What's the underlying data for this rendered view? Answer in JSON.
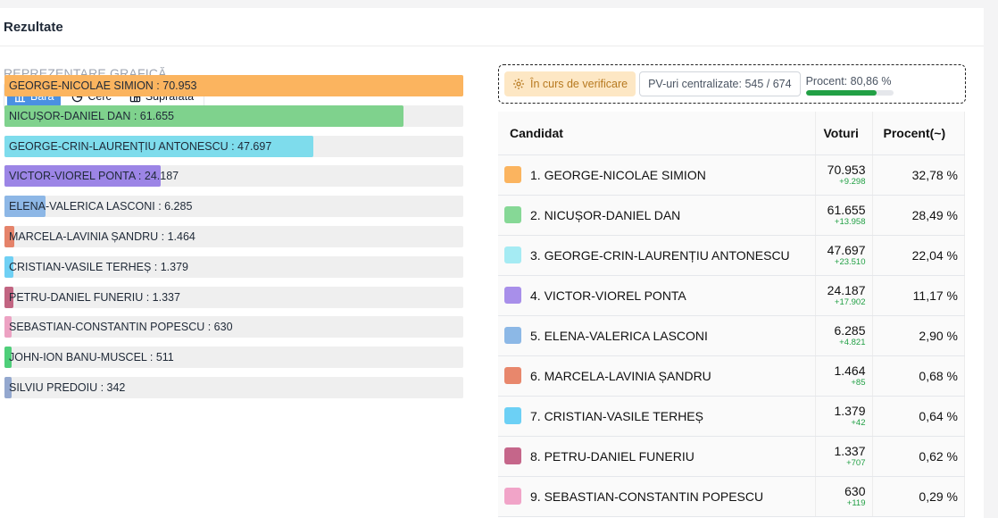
{
  "header": {
    "title": "Rezultate"
  },
  "chart_section": {
    "label": "REPREZENTARE GRAFICĂ",
    "toggles": [
      {
        "label": "Bara",
        "icon": "bar-chart-icon",
        "active": true
      },
      {
        "label": "Cerc",
        "icon": "pie-chart-icon",
        "active": false
      },
      {
        "label": "Suprafata",
        "icon": "treemap-icon",
        "active": false
      }
    ]
  },
  "chart_data": {
    "type": "bar",
    "orientation": "horizontal",
    "xlim": [
      0,
      70953
    ],
    "grid": false,
    "categories": [
      "GEORGE-NICOLAE SIMION",
      "NICUȘOR-DANIEL DAN",
      "GEORGE-CRIN-LAURENȚIU ANTONESCU",
      "VICTOR-VIOREL PONTA",
      "ELENA-VALERICA LASCONI",
      "MARCELA-LAVINIA ȘANDRU",
      "CRISTIAN-VASILE TERHEȘ",
      "PETRU-DANIEL FUNERIU",
      "SEBASTIAN-CONSTANTIN POPESCU",
      "JOHN-ION BANU-MUSCEL",
      "SILVIU PREDOIU"
    ],
    "values": [
      70953,
      61655,
      47697,
      24187,
      6285,
      1464,
      1379,
      1337,
      630,
      511,
      342
    ],
    "labels": [
      "GEORGE-NICOLAE SIMION : 70.953",
      "NICUȘOR-DANIEL DAN : 61.655",
      "GEORGE-CRIN-LAURENȚIU ANTONESCU : 47.697",
      "VICTOR-VIOREL PONTA : 24.187",
      "ELENA-VALERICA LASCONI : 6.285",
      "MARCELA-LAVINIA ȘANDRU : 1.464",
      "CRISTIAN-VASILE TERHEȘ : 1.379",
      "PETRU-DANIEL FUNERIU : 1.337",
      "SEBASTIAN-CONSTANTIN POPESCU : 630",
      "JOHN-ION BANU-MUSCEL : 511",
      "SILVIU PREDOIU : 342"
    ],
    "colors": [
      "#fbb45f",
      "#7fd28d",
      "#7edcec",
      "#9c85e6",
      "#8db7e6",
      "#e5836a",
      "#6fd0f4",
      "#c26582",
      "#eda2c3",
      "#4fcf7a",
      "#94a8cf"
    ]
  },
  "status": {
    "verify_label": "În curs de verificare",
    "pv_label": "PV-uri centralizate: 545 / 674",
    "progress_label": "Procent: 80,86 %",
    "progress_percent": 80.86
  },
  "table": {
    "headers": {
      "candidate": "Candidat",
      "votes": "Voturi",
      "percent": "Procent(~)"
    },
    "rows": [
      {
        "name": "1. GEORGE-NICOLAE SIMION",
        "votes": "70.953",
        "diff": "+9.298",
        "percent": "32,78 %",
        "color": "#fbb45f"
      },
      {
        "name": "2. NICUȘOR-DANIEL DAN",
        "votes": "61.655",
        "diff": "+13.958",
        "percent": "28,49 %",
        "color": "#86d896"
      },
      {
        "name": "3. GEORGE-CRIN-LAURENȚIU ANTONESCU",
        "votes": "47.697",
        "diff": "+23.510",
        "percent": "22,04 %",
        "color": "#a5ebf3"
      },
      {
        "name": "4. VICTOR-VIOREL PONTA",
        "votes": "24.187",
        "diff": "+17.902",
        "percent": "11,17 %",
        "color": "#a88fea"
      },
      {
        "name": "5. ELENA-VALERICA LASCONI",
        "votes": "6.285",
        "diff": "+4.821",
        "percent": "2,90 %",
        "color": "#8cb8e6"
      },
      {
        "name": "6. MARCELA-LAVINIA ȘANDRU",
        "votes": "1.464",
        "diff": "+85",
        "percent": "0,68 %",
        "color": "#e8876c"
      },
      {
        "name": "7. CRISTIAN-VASILE TERHEȘ",
        "votes": "1.379",
        "diff": "+42",
        "percent": "0,64 %",
        "color": "#6cd0f5"
      },
      {
        "name": "8. PETRU-DANIEL FUNERIU",
        "votes": "1.337",
        "diff": "+707",
        "percent": "0,62 %",
        "color": "#c5668a"
      },
      {
        "name": "9. SEBASTIAN-CONSTANTIN POPESCU",
        "votes": "630",
        "diff": "+119",
        "percent": "0,29 %",
        "color": "#f1a4c8"
      }
    ]
  }
}
